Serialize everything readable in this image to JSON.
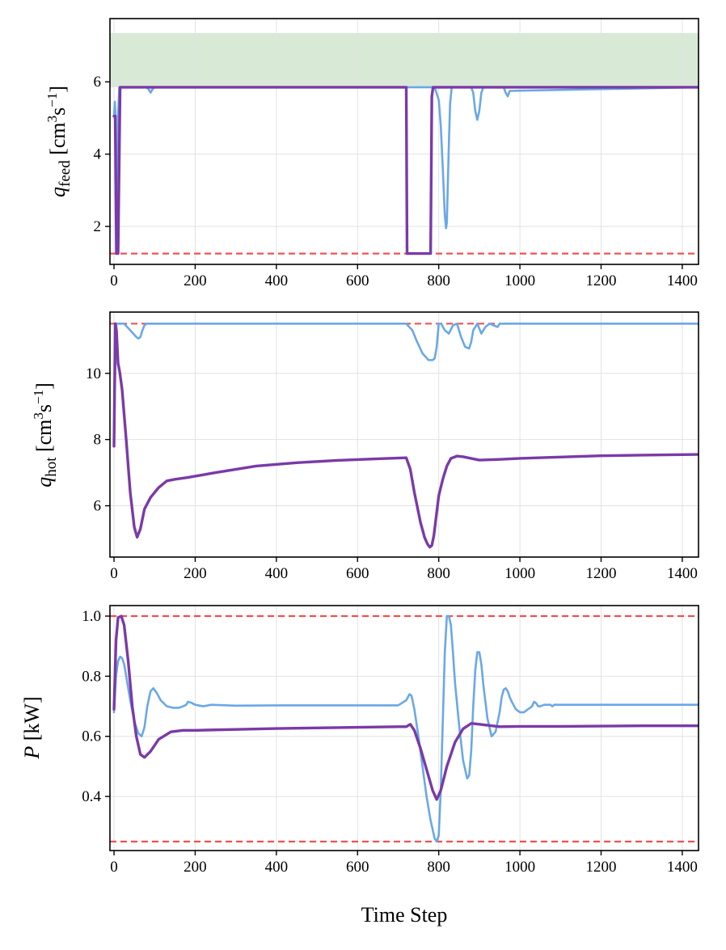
{
  "chart_data": [
    {
      "type": "line",
      "ylabel_var": "q",
      "ylabel_sub": "feed",
      "ylabel_unit_main": " [cm",
      "ylabel_unit_sup1": "3",
      "ylabel_unit_mid": "s",
      "ylabel_unit_sup2": "−1",
      "ylabel_unit_end": "]",
      "xlim": [
        -10,
        1440
      ],
      "ylim": [
        0.95,
        7.75
      ],
      "xticks": [
        0,
        200,
        400,
        600,
        800,
        1000,
        1200,
        1400
      ],
      "xtick_labels": [
        "0",
        "200",
        "400",
        "600",
        "800",
        "1000",
        "1200",
        "1400"
      ],
      "yticks": [
        2,
        4,
        6
      ],
      "ytick_labels": [
        "2",
        "4",
        "6"
      ],
      "grid": true,
      "band": {
        "y0": 5.85,
        "y1": 7.35,
        "color": "#d8ead6"
      },
      "hlines": [
        {
          "y": 1.25,
          "color": "#f04848",
          "style": "dashed"
        }
      ],
      "series": [
        {
          "name": "light",
          "color": "#6aa8e6",
          "width": 2.6,
          "x": [
            0,
            2,
            4,
            6,
            8,
            10,
            13,
            16,
            80,
            85,
            90,
            95,
            100,
            720,
            780,
            790,
            800,
            805,
            810,
            815,
            818,
            820,
            822,
            825,
            828,
            832,
            840,
            880,
            885,
            890,
            895,
            900,
            905,
            910,
            960,
            965,
            970,
            975,
            1440
          ],
          "y": [
            5.05,
            5.45,
            5.05,
            1.4,
            1.4,
            5.05,
            5.85,
            5.85,
            5.85,
            5.8,
            5.7,
            5.8,
            5.85,
            5.85,
            5.85,
            5.85,
            5.5,
            4.8,
            3.6,
            2.3,
            1.95,
            2.1,
            3.0,
            4.3,
            5.4,
            5.85,
            5.85,
            5.85,
            5.7,
            5.2,
            4.95,
            5.2,
            5.7,
            5.85,
            5.85,
            5.7,
            5.6,
            5.75,
            5.85
          ]
        },
        {
          "name": "dark",
          "color": "#7a3aa8",
          "width": 3.4,
          "x": [
            0,
            3,
            6,
            10,
            15,
            720,
            722,
            725,
            780,
            783,
            786,
            790,
            1440
          ],
          "y": [
            5.05,
            5.05,
            1.25,
            1.25,
            5.85,
            5.85,
            1.25,
            1.25,
            1.25,
            5.6,
            5.85,
            5.85,
            5.85
          ]
        }
      ]
    },
    {
      "type": "line",
      "ylabel_var": "q",
      "ylabel_sub": "hot",
      "ylabel_unit_main": " [cm",
      "ylabel_unit_sup1": "3",
      "ylabel_unit_mid": "s",
      "ylabel_unit_sup2": "−1",
      "ylabel_unit_end": "]",
      "xlim": [
        -10,
        1440
      ],
      "ylim": [
        4.45,
        11.85
      ],
      "xticks": [
        0,
        200,
        400,
        600,
        800,
        1000,
        1200,
        1400
      ],
      "xtick_labels": [
        "0",
        "200",
        "400",
        "600",
        "800",
        "1000",
        "1200",
        "1400"
      ],
      "yticks": [
        6,
        8,
        10
      ],
      "ytick_labels": [
        "6",
        "8",
        "10"
      ],
      "grid": true,
      "hlines": [
        {
          "y": 11.5,
          "color": "#f04848",
          "style": "dashed"
        }
      ],
      "series": [
        {
          "name": "light",
          "color": "#6aa8e6",
          "width": 2.6,
          "x": [
            0,
            3,
            6,
            10,
            13,
            25,
            40,
            55,
            60,
            65,
            70,
            75,
            80,
            720,
            735,
            745,
            760,
            775,
            785,
            790,
            795,
            800,
            806,
            815,
            825,
            835,
            845,
            855,
            865,
            875,
            880,
            885,
            895,
            905,
            915,
            925,
            935,
            945,
            950,
            1440
          ],
          "y": [
            7.8,
            10.0,
            11.5,
            11.5,
            11.5,
            11.5,
            11.3,
            11.1,
            11.05,
            11.1,
            11.3,
            11.45,
            11.5,
            11.5,
            11.3,
            11.0,
            10.6,
            10.4,
            10.4,
            10.45,
            10.8,
            11.5,
            11.5,
            11.3,
            11.2,
            11.45,
            11.5,
            11.1,
            10.8,
            10.75,
            10.95,
            11.3,
            11.5,
            11.2,
            11.4,
            11.5,
            11.45,
            11.4,
            11.5,
            11.5
          ]
        },
        {
          "name": "dark",
          "color": "#7a3aa8",
          "width": 3.4,
          "x": [
            0,
            3,
            6,
            10,
            14,
            20,
            30,
            40,
            50,
            57,
            65,
            75,
            90,
            110,
            130,
            150,
            180,
            250,
            350,
            450,
            550,
            650,
            720,
            730,
            740,
            755,
            765,
            772,
            778,
            783,
            788,
            793,
            800,
            810,
            820,
            830,
            845,
            860,
            900,
            950,
            1000,
            1100,
            1200,
            1300,
            1440
          ],
          "y": [
            7.8,
            11.5,
            11.3,
            10.3,
            10.05,
            9.5,
            8.0,
            6.4,
            5.35,
            5.05,
            5.3,
            5.9,
            6.25,
            6.55,
            6.75,
            6.8,
            6.85,
            7.0,
            7.2,
            7.3,
            7.37,
            7.42,
            7.45,
            7.1,
            6.4,
            5.5,
            5.05,
            4.85,
            4.75,
            4.8,
            5.1,
            5.6,
            6.3,
            6.8,
            7.2,
            7.43,
            7.5,
            7.48,
            7.38,
            7.4,
            7.43,
            7.47,
            7.51,
            7.53,
            7.55
          ]
        }
      ]
    },
    {
      "type": "line",
      "ylabel_var": "P",
      "ylabel_unit": " [kW]",
      "xlabel": "Time Step",
      "xlim": [
        -10,
        1440
      ],
      "ylim": [
        0.22,
        1.035
      ],
      "xticks": [
        0,
        200,
        400,
        600,
        800,
        1000,
        1200,
        1400
      ],
      "xtick_labels": [
        "0",
        "200",
        "400",
        "600",
        "800",
        "1000",
        "1200",
        "1400"
      ],
      "yticks": [
        0.4,
        0.6,
        0.8,
        1.0
      ],
      "ytick_labels": [
        "0.4",
        "0.6",
        "0.8",
        "1.0"
      ],
      "grid": true,
      "hlines": [
        {
          "y": 1.0,
          "color": "#f04848",
          "style": "dashed"
        },
        {
          "y": 0.25,
          "color": "#f04848",
          "style": "dashed"
        }
      ],
      "series": [
        {
          "name": "light",
          "color": "#6aa8e6",
          "width": 2.6,
          "x": [
            0,
            5,
            10,
            15,
            20,
            25,
            30,
            40,
            50,
            60,
            68,
            75,
            82,
            90,
            97,
            105,
            115,
            130,
            145,
            160,
            170,
            178,
            182,
            190,
            200,
            220,
            240,
            300,
            400,
            500,
            600,
            700,
            720,
            728,
            733,
            740,
            750,
            760,
            770,
            780,
            790,
            795,
            800,
            805,
            810,
            815,
            820,
            825,
            830,
            835,
            840,
            850,
            860,
            870,
            875,
            880,
            885,
            890,
            895,
            900,
            905,
            910,
            920,
            930,
            940,
            950,
            955,
            960,
            965,
            970,
            975,
            980,
            990,
            1000,
            1010,
            1020,
            1030,
            1035,
            1040,
            1045,
            1050,
            1060,
            1070,
            1075,
            1080,
            1085,
            1090,
            1100,
            1200,
            1300,
            1440
          ],
          "y": [
            0.68,
            0.8,
            0.85,
            0.865,
            0.86,
            0.84,
            0.8,
            0.72,
            0.65,
            0.61,
            0.6,
            0.63,
            0.7,
            0.75,
            0.76,
            0.745,
            0.72,
            0.7,
            0.695,
            0.695,
            0.7,
            0.705,
            0.715,
            0.712,
            0.705,
            0.7,
            0.705,
            0.702,
            0.703,
            0.703,
            0.703,
            0.703,
            0.72,
            0.74,
            0.735,
            0.69,
            0.6,
            0.5,
            0.4,
            0.32,
            0.26,
            0.25,
            0.27,
            0.42,
            0.65,
            0.88,
            1.0,
            1.0,
            0.97,
            0.88,
            0.78,
            0.64,
            0.52,
            0.46,
            0.47,
            0.55,
            0.7,
            0.82,
            0.88,
            0.88,
            0.84,
            0.77,
            0.66,
            0.6,
            0.615,
            0.68,
            0.73,
            0.755,
            0.76,
            0.75,
            0.73,
            0.715,
            0.69,
            0.68,
            0.68,
            0.69,
            0.7,
            0.715,
            0.71,
            0.7,
            0.7,
            0.705,
            0.705,
            0.705,
            0.7,
            0.705,
            0.705,
            0.705,
            0.705,
            0.705,
            0.705
          ]
        },
        {
          "name": "dark",
          "color": "#7a3aa8",
          "width": 3.4,
          "x": [
            0,
            5,
            10,
            18,
            25,
            35,
            45,
            55,
            65,
            75,
            90,
            110,
            140,
            170,
            200,
            300,
            400,
            500,
            600,
            700,
            720,
            730,
            740,
            755,
            770,
            785,
            795,
            805,
            820,
            840,
            860,
            880,
            900,
            950,
            1000,
            1100,
            1200,
            1300,
            1440
          ],
          "y": [
            0.69,
            0.92,
            0.995,
            1.0,
            0.97,
            0.85,
            0.7,
            0.6,
            0.54,
            0.53,
            0.55,
            0.59,
            0.615,
            0.62,
            0.62,
            0.623,
            0.626,
            0.628,
            0.63,
            0.632,
            0.632,
            0.64,
            0.62,
            0.56,
            0.49,
            0.42,
            0.39,
            0.42,
            0.5,
            0.58,
            0.625,
            0.643,
            0.64,
            0.632,
            0.633,
            0.633,
            0.634,
            0.635,
            0.635
          ]
        }
      ]
    }
  ]
}
